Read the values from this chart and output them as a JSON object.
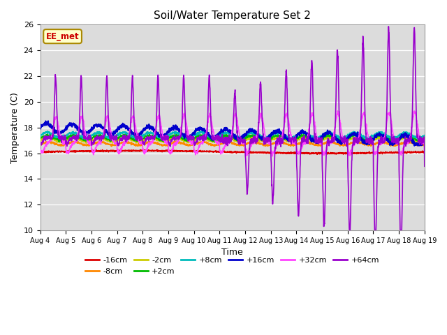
{
  "title": "Soil/Water Temperature Set 2",
  "xlabel": "Time",
  "ylabel": "Temperature (C)",
  "ylim": [
    10,
    26
  ],
  "yticks": [
    10,
    12,
    14,
    16,
    18,
    20,
    22,
    24,
    26
  ],
  "bg_color": "#dcdcdc",
  "fig_bg": "#ffffff",
  "annotation_text": "EE_met",
  "annotation_bg": "#ffffcc",
  "annotation_border": "#aa8800",
  "annotation_text_color": "#cc0000",
  "series_colors": {
    "-16cm": "#dd0000",
    "-8cm": "#ff8800",
    "-2cm": "#cccc00",
    "+2cm": "#00bb00",
    "+8cm": "#00bbbb",
    "+16cm": "#0000cc",
    "+32cm": "#ff44ff",
    "+64cm": "#9900cc"
  },
  "legend_order": [
    "-16cm",
    "-8cm",
    "-2cm",
    "+2cm",
    "+8cm",
    "+16cm",
    "+32cm",
    "+64cm"
  ],
  "n_days": 15,
  "start_day": 4,
  "pts_per_day": 144,
  "seed": 7
}
